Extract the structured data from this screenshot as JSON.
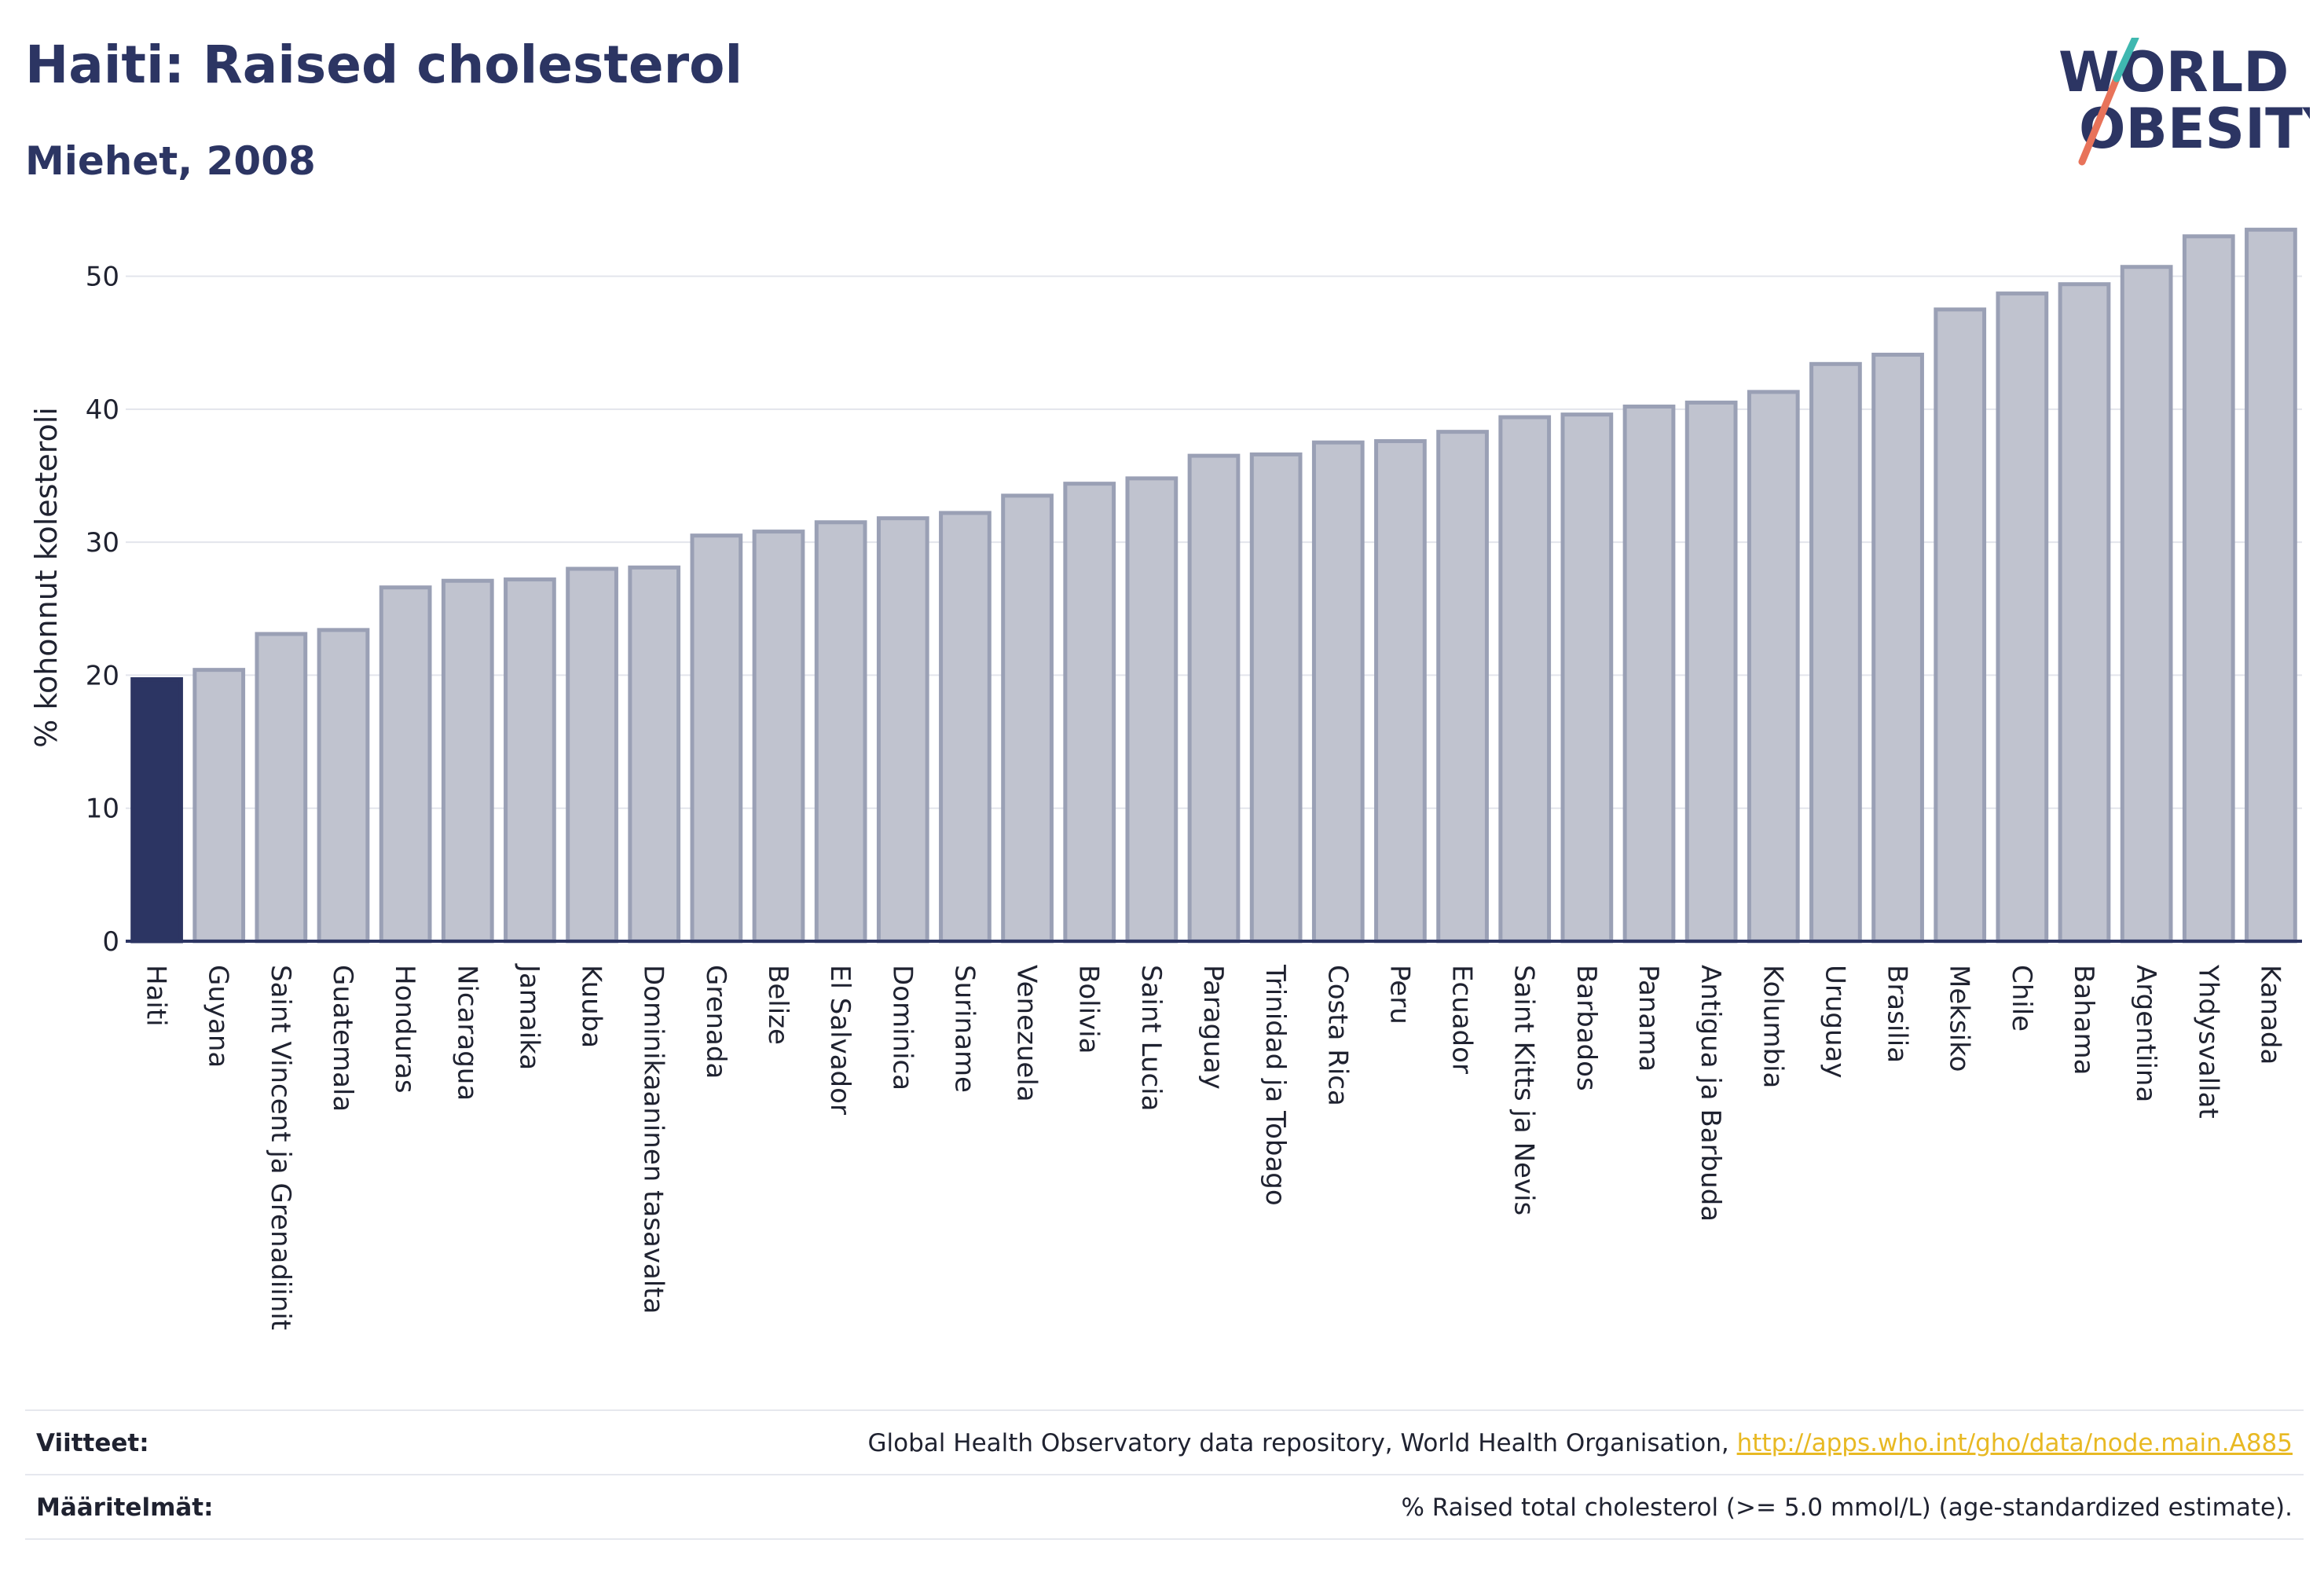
{
  "header": {
    "title": "Haiti: Raised cholesterol",
    "subtitle": "Miehet, 2008"
  },
  "logo": {
    "line1": "WORLD",
    "line2": "OBESITY"
  },
  "colors": {
    "highlight": "#2c3563",
    "bar": "#c0c3cf",
    "bar_edge": "#9aa0b5",
    "text": "#1f2230",
    "link": "#e8b923"
  },
  "chart_data": {
    "type": "bar",
    "ylabel": "% kohonnut kolesteroli",
    "xlabel": "",
    "ylim": [
      0,
      56
    ],
    "yticks": [
      0,
      10,
      20,
      30,
      40,
      50
    ],
    "grid": true,
    "highlight": "Haiti",
    "categories": [
      "Haiti",
      "Guyana",
      "Saint Vincent ja Grenadiinit",
      "Guatemala",
      "Honduras",
      "Nicaragua",
      "Jamaika",
      "Kuuba",
      "Dominikaaninen tasavalta",
      "Grenada",
      "Belize",
      "El Salvador",
      "Dominica",
      "Suriname",
      "Venezuela",
      "Bolivia",
      "Saint Lucia",
      "Paraguay",
      "Trinidad ja Tobago",
      "Costa Rica",
      "Peru",
      "Ecuador",
      "Saint Kitts ja Nevis",
      "Barbados",
      "Panama",
      "Antigua ja Barbuda",
      "Kolumbia",
      "Uruguay",
      "Brasilia",
      "Meksiko",
      "Chile",
      "Bahama",
      "Argentiina",
      "Yhdysvallat",
      "Kanada"
    ],
    "values": [
      19.7,
      20.4,
      23.1,
      23.4,
      26.6,
      27.1,
      27.2,
      28.0,
      28.1,
      30.5,
      30.8,
      31.5,
      31.8,
      32.2,
      33.5,
      34.4,
      34.8,
      36.5,
      36.6,
      37.5,
      37.6,
      38.3,
      39.4,
      39.6,
      40.2,
      40.5,
      41.3,
      43.4,
      44.1,
      47.5,
      48.7,
      49.4,
      50.7,
      53.0,
      53.5
    ]
  },
  "footer": {
    "references_label": "Viitteet:",
    "references_text": "Global Health Observatory data repository, World Health Organisation,",
    "references_link": "http://apps.who.int/gho/data/node.main.A885",
    "definitions_label": "Määritelmät:",
    "definitions_text": "% Raised total cholesterol (>= 5.0 mmol/L) (age-standardized estimate)."
  }
}
